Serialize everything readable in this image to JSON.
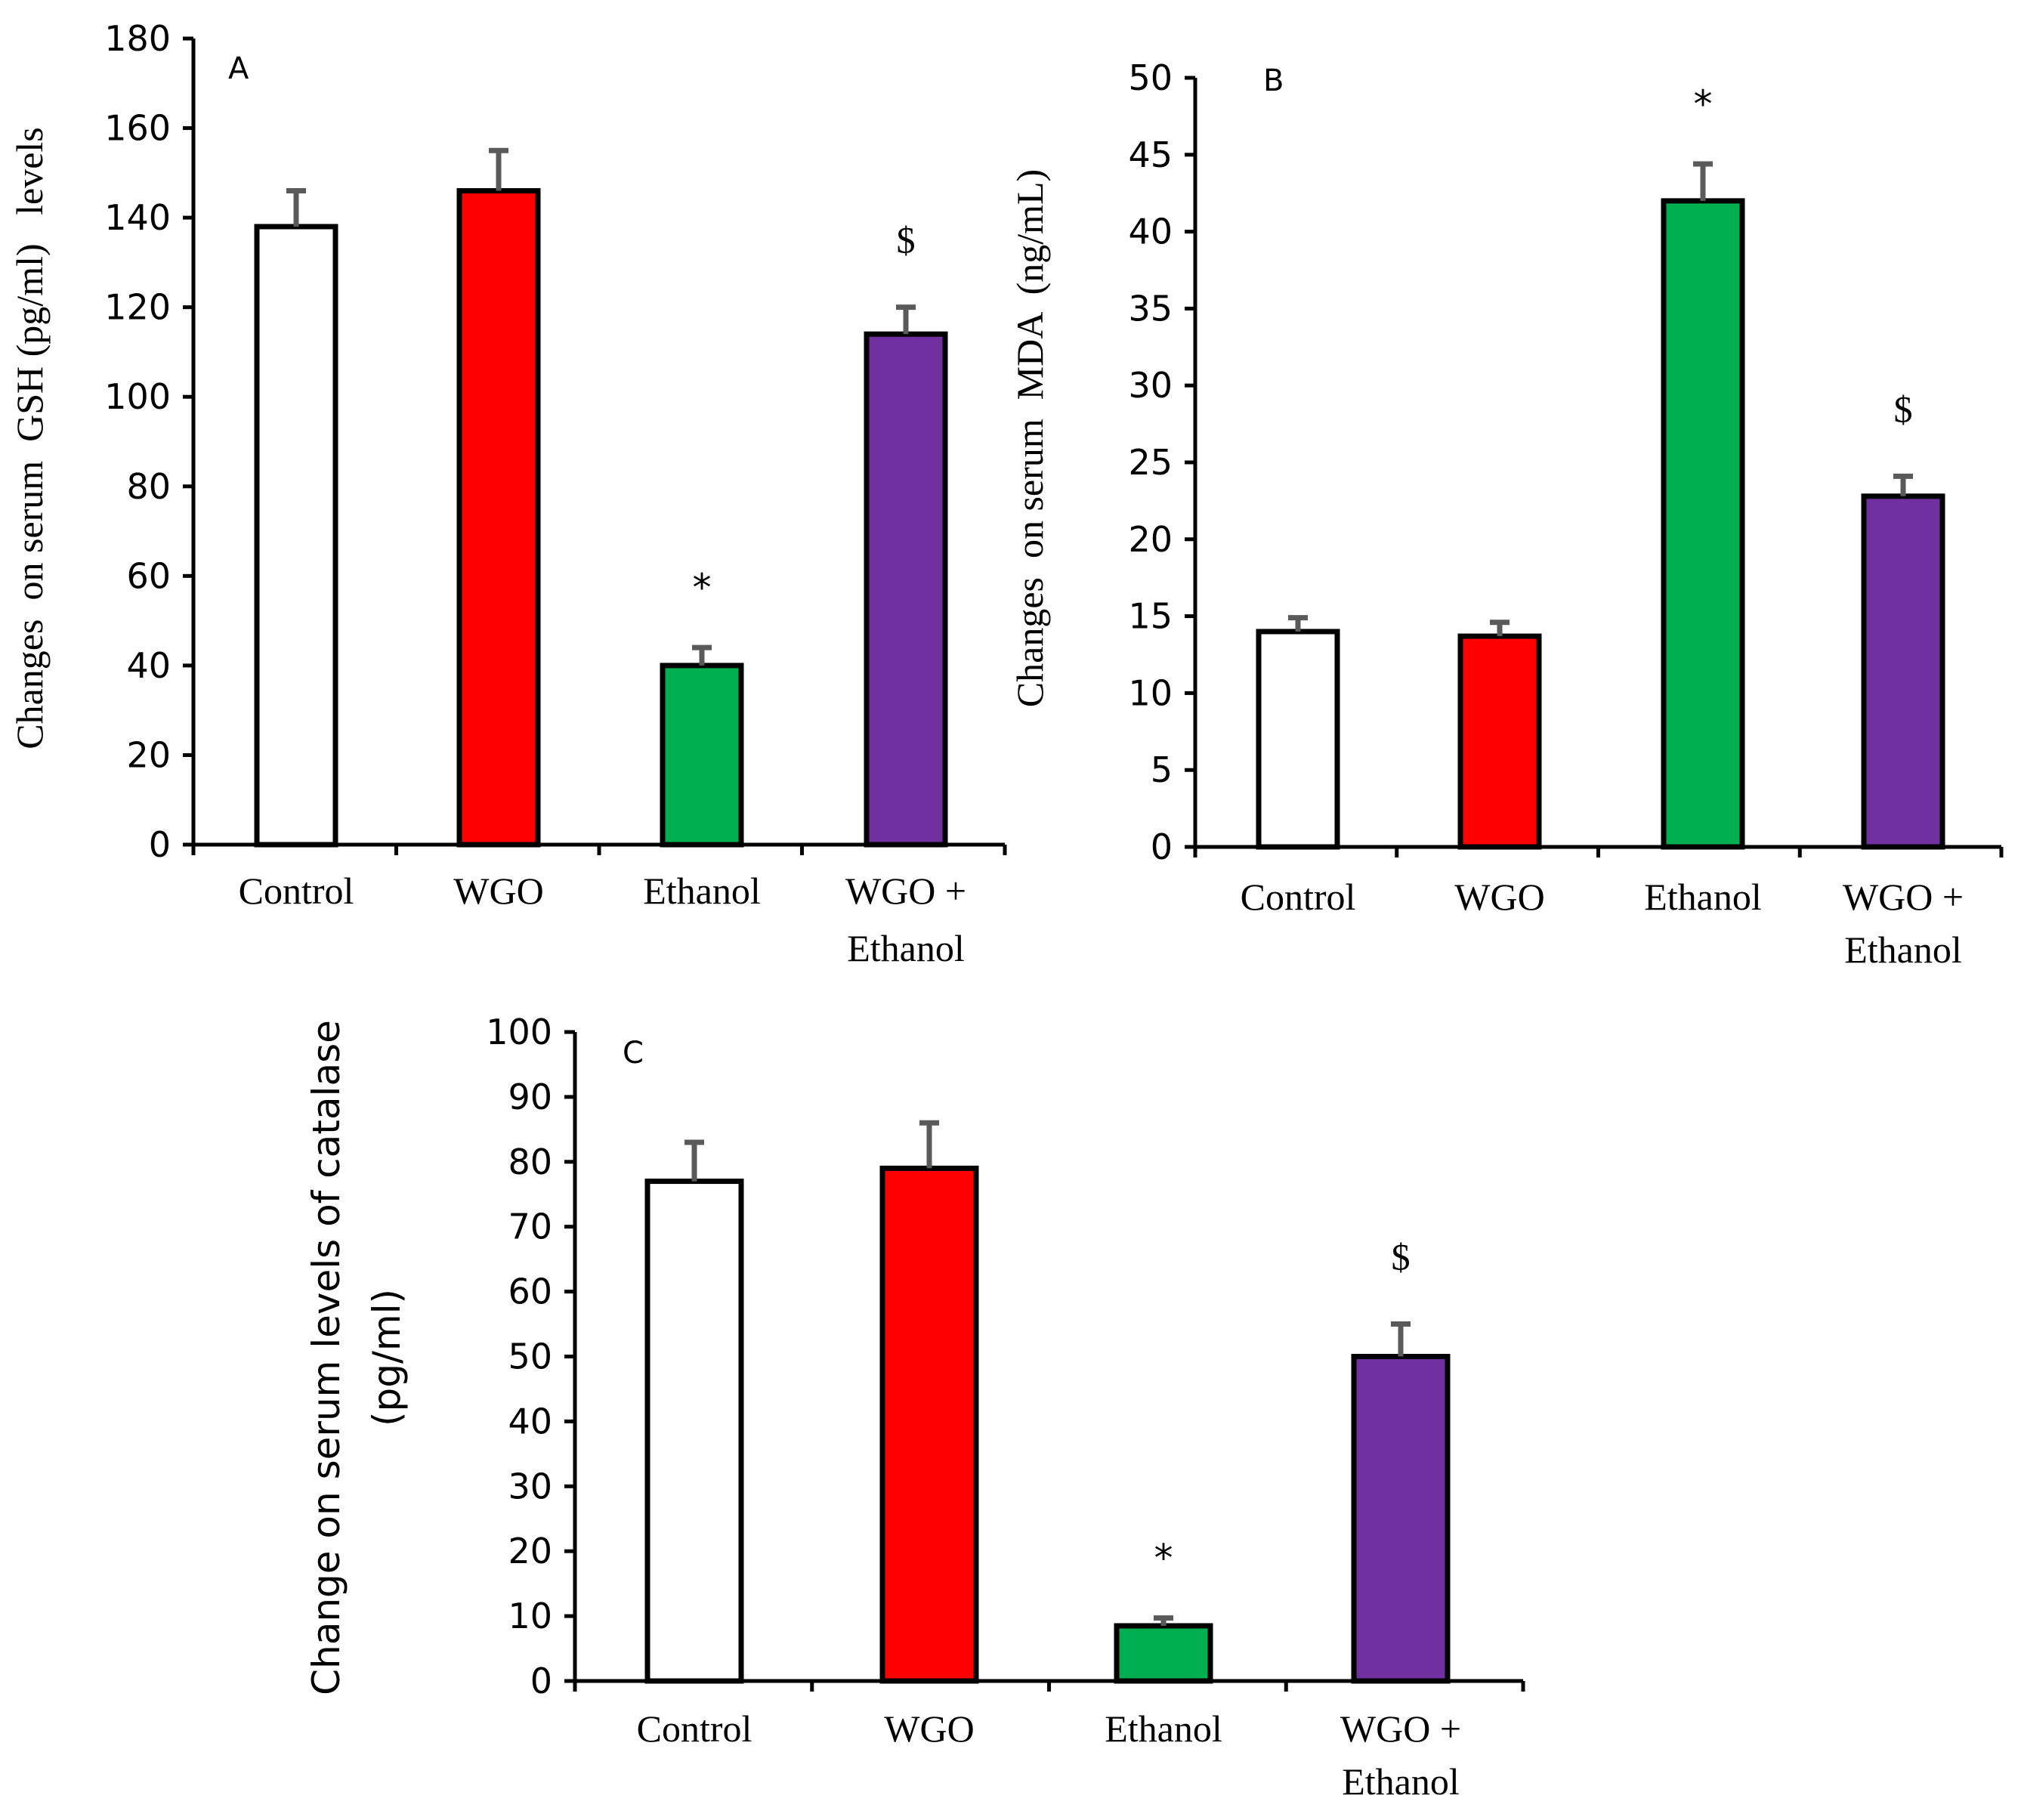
{
  "chart_data": [
    {
      "type": "bar",
      "panel": "A",
      "title": "",
      "xlabel": "",
      "ylabel": "Changes  on serum  GSH (pg/ml)   levels",
      "ylim": [
        0,
        180
      ],
      "yticks": [
        0,
        20,
        40,
        60,
        80,
        100,
        120,
        140,
        160,
        180
      ],
      "categories": [
        [
          "Control"
        ],
        [
          "WGO"
        ],
        [
          "Ethanol"
        ],
        [
          "WGO +",
          "Ethanol"
        ]
      ],
      "values": [
        138,
        146,
        40,
        114
      ],
      "errors": [
        8,
        9,
        4,
        6
      ],
      "colors": [
        "#ffffff",
        "#ff0000",
        "#00b050",
        "#7030a0"
      ],
      "significance": [
        "",
        "",
        "*",
        "$"
      ]
    },
    {
      "type": "bar",
      "panel": "B",
      "title": "",
      "xlabel": "",
      "ylabel": "Changes  on serum  MDA  (ng/mL)",
      "ylim": [
        0,
        50
      ],
      "yticks": [
        0,
        5,
        10,
        15,
        20,
        25,
        30,
        35,
        40,
        45,
        50
      ],
      "categories": [
        [
          "Control"
        ],
        [
          "WGO"
        ],
        [
          "Ethanol"
        ],
        [
          "WGO +",
          "Ethanol"
        ]
      ],
      "values": [
        14,
        13.7,
        42,
        22.8
      ],
      "errors": [
        0.9,
        0.9,
        2.4,
        1.3
      ],
      "colors": [
        "#ffffff",
        "#ff0000",
        "#00b050",
        "#7030a0"
      ],
      "significance": [
        "",
        "",
        "*",
        "$"
      ]
    },
    {
      "type": "bar",
      "panel": "C",
      "title": "",
      "xlabel": "",
      "ylabel": [
        "Change on serum levels of catalase",
        "(pg/ml)"
      ],
      "ylim": [
        0,
        100
      ],
      "yticks": [
        0,
        10,
        20,
        30,
        40,
        50,
        60,
        70,
        80,
        90,
        100
      ],
      "categories": [
        [
          "Control"
        ],
        [
          "WGO"
        ],
        [
          "Ethanol"
        ],
        [
          "WGO +",
          "Ethanol"
        ]
      ],
      "values": [
        77,
        79,
        8.5,
        50
      ],
      "errors": [
        6,
        7,
        1.2,
        5
      ],
      "colors": [
        "#ffffff",
        "#ff0000",
        "#00b050",
        "#7030a0"
      ],
      "significance": [
        "",
        "",
        "*",
        "$"
      ]
    }
  ]
}
